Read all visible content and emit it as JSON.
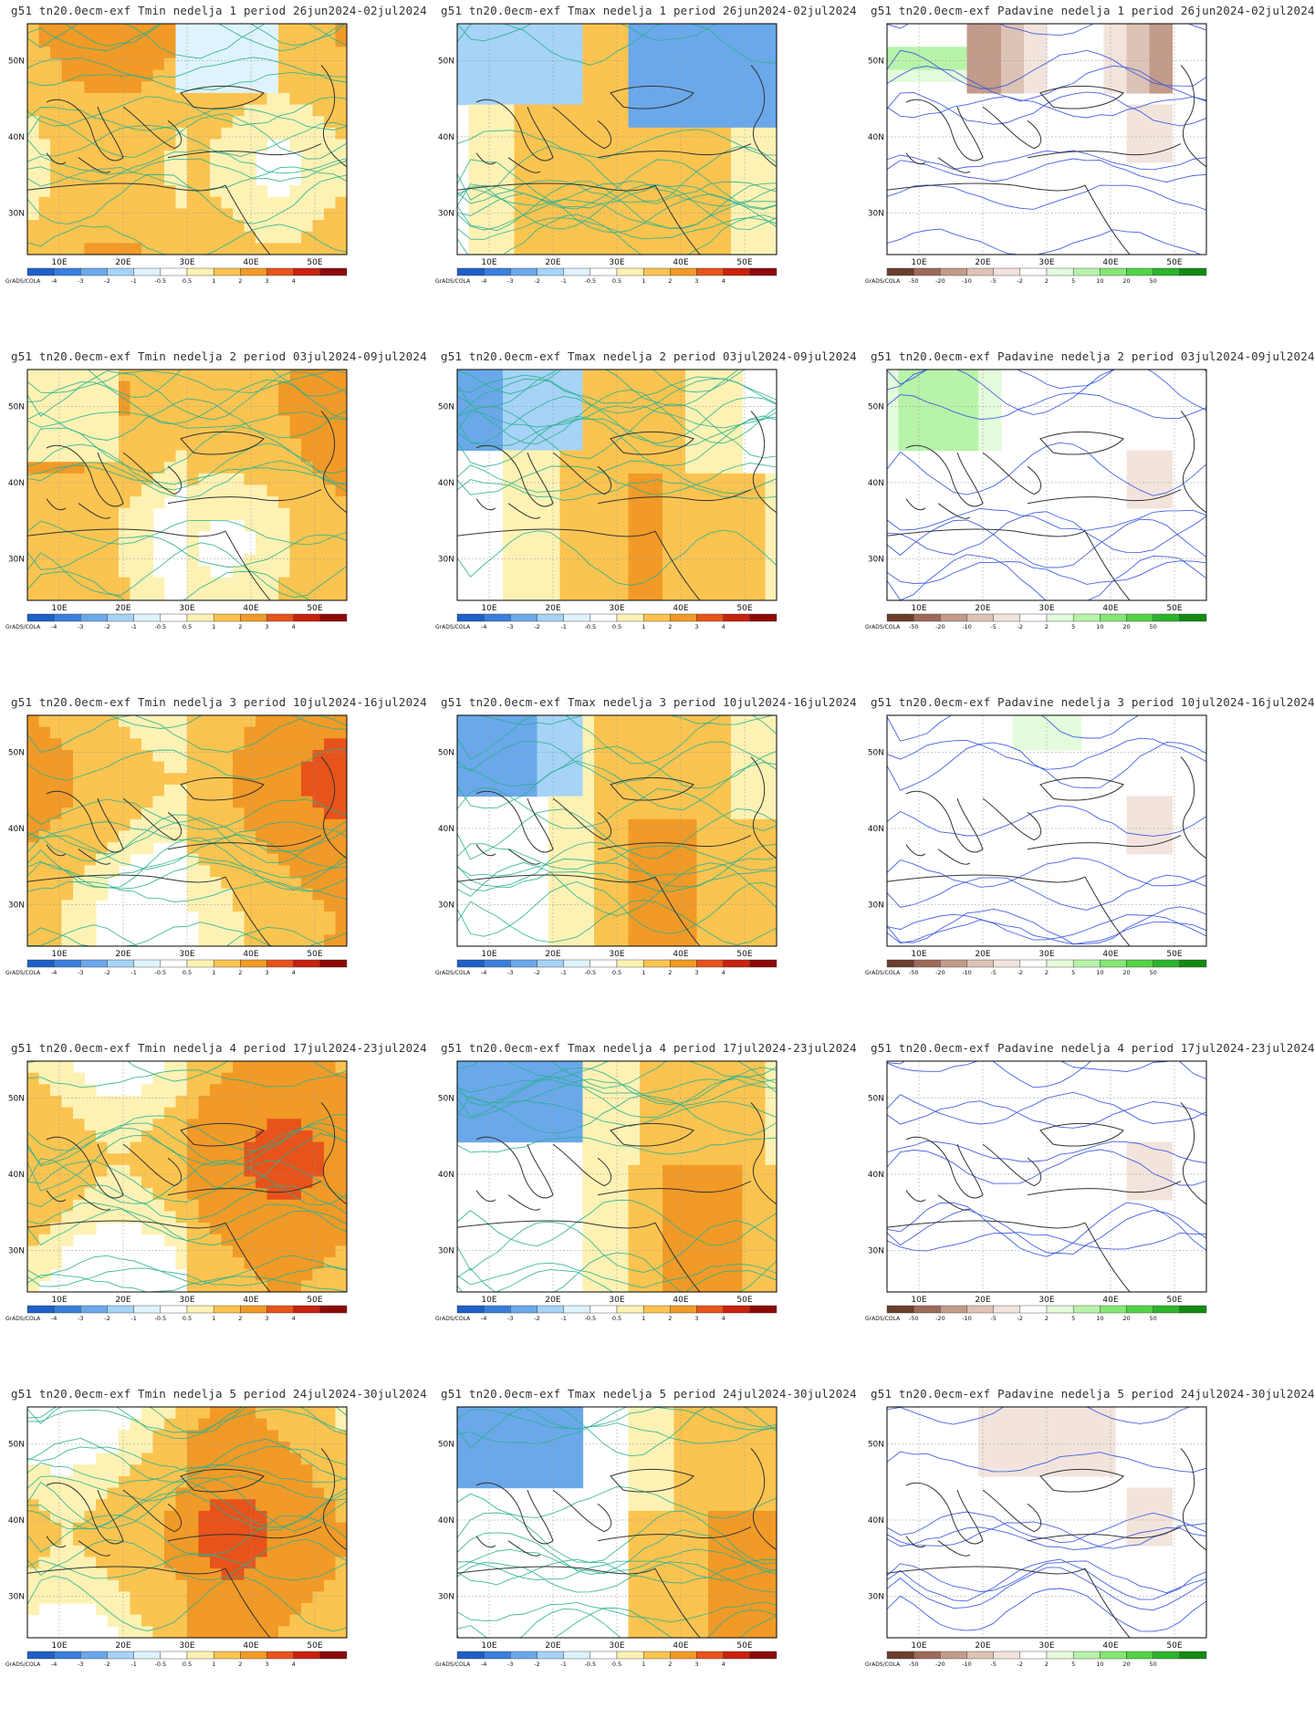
{
  "colorbar": {
    "source_label": "GrADS/COLA",
    "temp_labels": [
      "-4",
      "-3",
      "-2",
      "-1",
      "-0.5",
      "0.5",
      "1",
      "2",
      "3",
      "4"
    ],
    "temp_colors": [
      "#1f5fc8",
      "#3a7fdc",
      "#6aa8ea",
      "#a6d3f6",
      "#dff3fd",
      "#ffffff",
      "#fdf2b4",
      "#fbc451",
      "#f19a27",
      "#e7531b",
      "#c8210f",
      "#8c0a08"
    ],
    "precip_labels": [
      "-50",
      "-20",
      "-10",
      "-5",
      "-2",
      "2",
      "5",
      "10",
      "20",
      "50"
    ],
    "precip_colors": [
      "#6b3e2e",
      "#9e6a58",
      "#c39b8b",
      "#ddc3b6",
      "#f2e4dc",
      "#ffffff",
      "#e4fbdc",
      "#b8f3aa",
      "#84e774",
      "#52d346",
      "#2bb52b",
      "#128a13"
    ]
  },
  "axes": {
    "x_ticks": [
      "10E",
      "20E",
      "30E",
      "40E",
      "50E"
    ],
    "y_ticks": [
      "50N",
      "40N",
      "30N"
    ]
  },
  "panels": [
    {
      "title": "g51  tn20.0ecm-exf Tmin nedelja 1 period 26jun2024-02jul2024",
      "var": "tmin"
    },
    {
      "title": "g51  tn20.0ecm-exf Tmax nedelja 1 period 26jun2024-02jul2024",
      "var": "tmax"
    },
    {
      "title": "g51  tn20.0ecm-exf Padavine nedelja 1 period 26jun2024-02jul2024",
      "var": "precip"
    },
    {
      "title": "g51  tn20.0ecm-exf Tmin nedelja 2 period 03jul2024-09jul2024",
      "var": "tmin"
    },
    {
      "title": "g51  tn20.0ecm-exf Tmax nedelja 2 period 03jul2024-09jul2024",
      "var": "tmax"
    },
    {
      "title": "g51  tn20.0ecm-exf Padavine nedelja 2 period 03jul2024-09jul2024",
      "var": "precip"
    },
    {
      "title": "g51  tn20.0ecm-exf Tmin nedelja 3 period 10jul2024-16jul2024",
      "var": "tmin"
    },
    {
      "title": "g51  tn20.0ecm-exf Tmax nedelja 3 period 10jul2024-16jul2024",
      "var": "tmax"
    },
    {
      "title": "g51  tn20.0ecm-exf Padavine nedelja 3 period 10jul2024-16jul2024",
      "var": "precip"
    },
    {
      "title": "g51  tn20.0ecm-exf Tmin nedelja 4 period 17jul2024-23jul2024",
      "var": "tmin"
    },
    {
      "title": "g51  tn20.0ecm-exf Tmax nedelja 4 period 17jul2024-23jul2024",
      "var": "tmax"
    },
    {
      "title": "g51  tn20.0ecm-exf Padavine nedelja 4 period 17jul2024-23jul2024",
      "var": "precip"
    },
    {
      "title": "g51  tn20.0ecm-exf Tmin nedelja 5 period 24jul2024-30jul2024",
      "var": "tmin"
    },
    {
      "title": "g51  tn20.0ecm-exf Tmax nedelja 5 period 24jul2024-30jul2024",
      "var": "tmax"
    },
    {
      "title": "g51  tn20.0ecm-exf Padavine nedelja 5 period 24jul2024-30jul2024",
      "var": "precip"
    }
  ]
}
